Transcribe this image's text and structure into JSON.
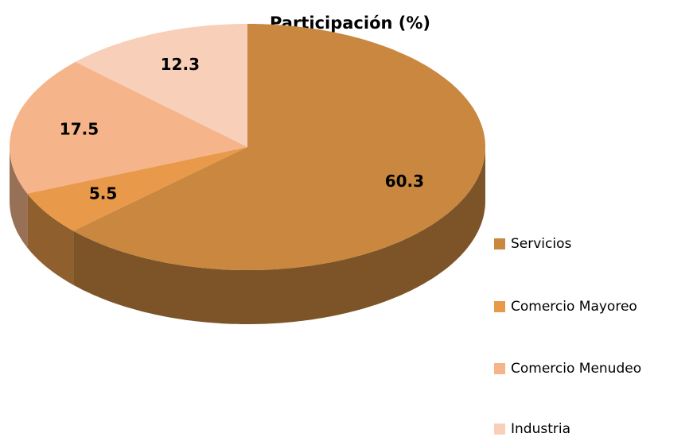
{
  "chart_data": {
    "type": "pie3d",
    "title": "Participación (%)",
    "categories": [
      "Servicios",
      "Comercio Mayoreo",
      "Comercio Menudeo",
      "Industria"
    ],
    "values": [
      60.3,
      5.5,
      17.5,
      12.3
    ],
    "colors": [
      "#c9873f",
      "#e8994a",
      "#f5b48a",
      "#f8d0ba"
    ],
    "legend": "right"
  }
}
